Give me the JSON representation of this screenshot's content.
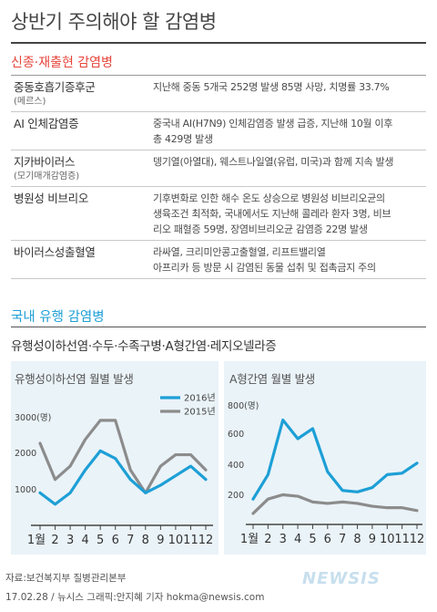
{
  "title": "상반기 주의해야 할 감염병",
  "section1": {
    "heading": "신종·재출현 감염병",
    "rows": [
      {
        "name": "중동호흡기증후군",
        "sub": "(메르스)",
        "desc": "지난해 중동 5개국 252명 발생 85명 사망, 치명률 33.7%"
      },
      {
        "name": "AI 인체감염증",
        "sub": "",
        "desc": "중국내 AI(H7N9) 인체감염증 발생 급증, 지난해 10월 이후\n총 429명 발생"
      },
      {
        "name": "지카바이러스",
        "sub": "(모기매개감염증)",
        "desc": "뎅기열(아열대), 웨스트나일열(유럽, 미국)과 함께 지속 발생"
      },
      {
        "name": "병원성 비브리오",
        "sub": "",
        "desc": "기후변화로 인한 해수 온도 상승으로 병원성 비브리오균의\n생육조건 최적화, 국내에서도 지난해 콜레라 환자 3명, 비브\n리오 패혈증 59명, 장염비브리오균 감염증 22명 발생"
      },
      {
        "name": "바이러스성출혈열",
        "sub": "",
        "desc": "라싸열, 크리미안콩고출혈열, 리프트밸리열\n아프리카 등 방문 시 감염된 동물 섭취 및 접촉금지 주의"
      }
    ]
  },
  "section2": {
    "heading": "국내 유행 감염병",
    "subheading": "유행성이하선염·수두·수족구병·A형간염·레지오넬라증"
  },
  "chart_data": [
    {
      "type": "line",
      "title": "유행성이하선염 월별 발생",
      "categories": [
        "1월",
        "2",
        "3",
        "4",
        "5",
        "6",
        "7",
        "8",
        "9",
        "10",
        "11",
        "12"
      ],
      "ytick_labels": [
        "1000",
        "2000",
        "3000(명)"
      ],
      "ylim": [
        0,
        3300
      ],
      "series": [
        {
          "name": "2016년",
          "color": "#1d9fd6",
          "values": [
            900,
            600,
            900,
            1500,
            2000,
            1800,
            1250,
            900,
            1100,
            1350,
            1600,
            1250
          ]
        },
        {
          "name": "2015년",
          "color": "#8c8c8c",
          "values": [
            2200,
            1250,
            1600,
            2300,
            2800,
            2800,
            1500,
            900,
            1600,
            1900,
            1900,
            1500
          ]
        }
      ],
      "legend": "top-right",
      "grid": false
    },
    {
      "type": "line",
      "title": "A형간염 월별 발생",
      "categories": [
        "1월",
        "2",
        "3",
        "4",
        "5",
        "6",
        "7",
        "8",
        "9",
        "10",
        "11",
        "12"
      ],
      "ytick_labels": [
        "200",
        "400",
        "600",
        "800(명)"
      ],
      "ylim": [
        0,
        850
      ],
      "series": [
        {
          "name": "2016년",
          "color": "#1d9fd6",
          "values": [
            170,
            340,
            720,
            590,
            660,
            360,
            230,
            220,
            250,
            340,
            350,
            420
          ]
        },
        {
          "name": "2015년",
          "color": "#8c8c8c",
          "values": [
            70,
            170,
            200,
            190,
            150,
            140,
            150,
            140,
            120,
            110,
            110,
            90
          ]
        }
      ],
      "legend": "none",
      "grid": false
    }
  ],
  "footer": {
    "source": "자료:보건복지부 질병관리본부",
    "credit": "17.02.28 / 뉴시스 그래픽:안지혜 기자 hokma@newsis.com",
    "logo": "NEWSIS"
  }
}
